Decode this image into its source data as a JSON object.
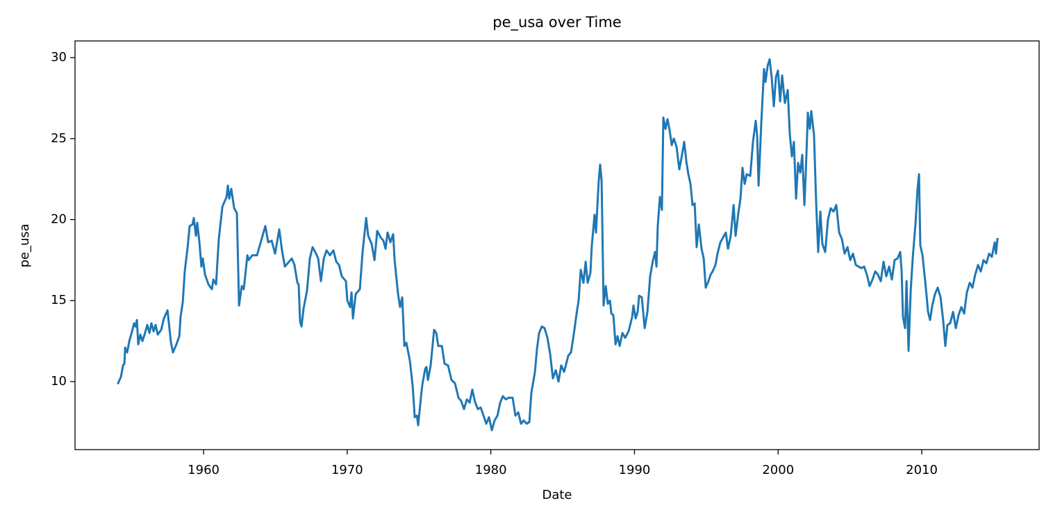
{
  "chart_data": {
    "type": "line",
    "title": "pe_usa over Time",
    "x_label": "Date",
    "y_label": "pe_usa",
    "color": "#1f77b4",
    "xlim": [
      1951.05,
      2018.17
    ],
    "xticks": [
      1960,
      1970,
      1980,
      1990,
      2000,
      2010
    ],
    "ylim": [
      5.8,
      31.03
    ],
    "yticks": [
      10,
      15,
      20,
      25,
      30
    ],
    "grid": false,
    "x": [
      1954.05,
      1954.25,
      1954.39,
      1954.49,
      1954.54,
      1954.68,
      1954.83,
      1955.02,
      1955.16,
      1955.26,
      1955.36,
      1955.45,
      1955.6,
      1955.74,
      1955.89,
      1956.08,
      1956.23,
      1956.37,
      1956.52,
      1956.66,
      1956.81,
      1957.05,
      1957.24,
      1957.49,
      1957.73,
      1957.87,
      1958.11,
      1958.31,
      1958.4,
      1958.55,
      1958.69,
      1958.89,
      1959.03,
      1959.23,
      1959.32,
      1959.47,
      1959.56,
      1959.71,
      1959.85,
      1959.95,
      1960.1,
      1960.34,
      1960.58,
      1960.68,
      1960.87,
      1961.06,
      1961.31,
      1961.6,
      1961.69,
      1961.79,
      1961.93,
      1962.13,
      1962.32,
      1962.47,
      1962.66,
      1962.8,
      1963.05,
      1963.14,
      1963.39,
      1963.72,
      1964.01,
      1964.3,
      1964.5,
      1964.74,
      1964.98,
      1965.27,
      1965.46,
      1965.66,
      1965.95,
      1966.14,
      1966.33,
      1966.53,
      1966.62,
      1966.72,
      1966.82,
      1966.96,
      1967.2,
      1967.4,
      1967.59,
      1967.83,
      1967.98,
      1968.17,
      1968.37,
      1968.56,
      1968.8,
      1969.04,
      1969.24,
      1969.43,
      1969.62,
      1969.91,
      1970.01,
      1970.2,
      1970.3,
      1970.4,
      1970.59,
      1970.88,
      1971.07,
      1971.32,
      1971.46,
      1971.7,
      1971.9,
      1972.09,
      1972.33,
      1972.52,
      1972.67,
      1972.81,
      1973.01,
      1973.2,
      1973.3,
      1973.54,
      1973.68,
      1973.83,
      1973.98,
      1974.12,
      1974.36,
      1974.56,
      1974.7,
      1974.85,
      1974.94,
      1975.14,
      1975.23,
      1975.43,
      1975.52,
      1975.62,
      1975.81,
      1976.05,
      1976.2,
      1976.34,
      1976.59,
      1976.78,
      1977.02,
      1977.26,
      1977.5,
      1977.75,
      1977.94,
      1978.13,
      1978.33,
      1978.52,
      1978.71,
      1978.91,
      1979.1,
      1979.29,
      1979.49,
      1979.68,
      1979.87,
      1980.07,
      1980.26,
      1980.46,
      1980.65,
      1980.84,
      1981.04,
      1981.23,
      1981.52,
      1981.71,
      1981.91,
      1982.1,
      1982.29,
      1982.49,
      1982.68,
      1982.82,
      1983.07,
      1983.21,
      1983.36,
      1983.55,
      1983.74,
      1983.94,
      1984.13,
      1984.32,
      1984.52,
      1984.71,
      1984.9,
      1985.1,
      1985.39,
      1985.58,
      1985.77,
      1985.97,
      1986.11,
      1986.26,
      1986.45,
      1986.6,
      1986.74,
      1986.93,
      1987.03,
      1987.22,
      1987.32,
      1987.51,
      1987.61,
      1987.71,
      1987.85,
      1988.0,
      1988.14,
      1988.29,
      1988.39,
      1988.53,
      1988.68,
      1988.82,
      1988.97,
      1989.16,
      1989.35,
      1989.59,
      1989.84,
      1989.93,
      1990.08,
      1990.22,
      1990.32,
      1990.51,
      1990.71,
      1990.9,
      1991.09,
      1991.29,
      1991.43,
      1991.53,
      1991.62,
      1991.77,
      1991.91,
      1992.01,
      1992.16,
      1992.3,
      1992.45,
      1992.59,
      1992.74,
      1992.93,
      1993.12,
      1993.27,
      1993.46,
      1993.61,
      1993.75,
      1993.9,
      1994.04,
      1994.19,
      1994.33,
      1994.48,
      1994.67,
      1994.82,
      1994.96,
      1995.15,
      1995.3,
      1995.44,
      1995.64,
      1995.78,
      1995.98,
      1996.17,
      1996.36,
      1996.51,
      1996.7,
      1996.9,
      1997.04,
      1997.23,
      1997.38,
      1997.52,
      1997.67,
      1997.81,
      1998.06,
      1998.25,
      1998.44,
      1998.54,
      1998.64,
      1998.83,
      1999.02,
      1999.12,
      1999.27,
      1999.41,
      1999.56,
      1999.7,
      1999.85,
      1999.99,
      2000.14,
      2000.28,
      2000.47,
      2000.67,
      2000.81,
      2000.96,
      2001.1,
      2001.25,
      2001.39,
      2001.54,
      2001.68,
      2001.83,
      2001.93,
      2002.07,
      2002.21,
      2002.31,
      2002.5,
      2002.65,
      2002.79,
      2002.94,
      2003.08,
      2003.28,
      2003.47,
      2003.66,
      2003.86,
      2004.05,
      2004.25,
      2004.44,
      2004.63,
      2004.83,
      2005.02,
      2005.21,
      2005.41,
      2005.6,
      2005.79,
      2005.99,
      2006.18,
      2006.37,
      2006.57,
      2006.76,
      2006.95,
      2007.15,
      2007.34,
      2007.53,
      2007.73,
      2007.92,
      2008.11,
      2008.31,
      2008.5,
      2008.6,
      2008.69,
      2008.84,
      2008.94,
      2009.08,
      2009.23,
      2009.37,
      2009.56,
      2009.71,
      2009.81,
      2009.9,
      2010.05,
      2010.24,
      2010.44,
      2010.58,
      2010.73,
      2010.92,
      2011.11,
      2011.31,
      2011.5,
      2011.64,
      2011.79,
      2011.98,
      2012.18,
      2012.37,
      2012.56,
      2012.76,
      2012.95,
      2013.14,
      2013.34,
      2013.53,
      2013.72,
      2013.92,
      2014.11,
      2014.3,
      2014.5,
      2014.69,
      2014.88,
      2015.08,
      2015.17,
      2015.27
    ],
    "values": [
      9.9,
      10.3,
      11.0,
      11.1,
      12.1,
      11.8,
      12.5,
      13.1,
      13.6,
      13.4,
      13.8,
      12.3,
      12.9,
      12.5,
      12.9,
      13.5,
      13.0,
      13.6,
      13.1,
      13.5,
      12.9,
      13.2,
      13.9,
      14.4,
      12.4,
      11.8,
      12.3,
      12.8,
      14.0,
      14.9,
      16.8,
      18.3,
      19.6,
      19.7,
      20.1,
      19.0,
      19.8,
      18.6,
      17.1,
      17.6,
      16.6,
      16.0,
      15.7,
      16.3,
      16.0,
      18.8,
      20.8,
      21.4,
      22.1,
      21.3,
      21.9,
      20.7,
      20.4,
      14.7,
      15.9,
      15.7,
      17.8,
      17.5,
      17.8,
      17.8,
      18.7,
      19.6,
      18.6,
      18.7,
      17.9,
      19.4,
      18.1,
      17.1,
      17.4,
      17.6,
      17.2,
      16.1,
      16.0,
      13.7,
      13.4,
      14.5,
      15.6,
      17.6,
      18.3,
      17.9,
      17.6,
      16.2,
      17.6,
      18.1,
      17.8,
      18.1,
      17.4,
      17.2,
      16.5,
      16.2,
      15.0,
      14.6,
      15.5,
      13.9,
      15.4,
      15.7,
      18.0,
      20.1,
      19.0,
      18.5,
      17.5,
      19.3,
      18.9,
      18.7,
      18.2,
      19.2,
      18.6,
      19.1,
      17.5,
      15.4,
      14.6,
      15.2,
      12.2,
      12.4,
      11.3,
      9.7,
      7.8,
      7.9,
      7.3,
      9.1,
      9.8,
      10.8,
      10.9,
      10.1,
      11.0,
      13.2,
      13.0,
      12.2,
      12.2,
      11.1,
      11.0,
      10.1,
      9.9,
      9.0,
      8.8,
      8.3,
      8.9,
      8.7,
      9.5,
      8.7,
      8.3,
      8.4,
      7.9,
      7.4,
      7.8,
      7.0,
      7.6,
      7.9,
      8.7,
      9.1,
      8.9,
      9.0,
      9.0,
      7.9,
      8.1,
      7.4,
      7.6,
      7.4,
      7.5,
      9.3,
      10.6,
      12.0,
      13.0,
      13.4,
      13.3,
      12.7,
      11.7,
      10.2,
      10.7,
      10.0,
      11.0,
      10.6,
      11.6,
      11.8,
      12.9,
      14.2,
      15.0,
      16.9,
      16.1,
      17.4,
      16.1,
      16.7,
      18.4,
      20.3,
      19.2,
      22.4,
      23.4,
      22.4,
      14.7,
      15.9,
      14.8,
      15.0,
      14.2,
      14.1,
      12.3,
      12.8,
      12.2,
      13.0,
      12.7,
      13.1,
      14.0,
      14.7,
      13.9,
      14.3,
      15.3,
      15.2,
      13.3,
      14.3,
      16.5,
      17.5,
      18.0,
      17.1,
      19.6,
      21.4,
      20.6,
      26.3,
      25.6,
      26.2,
      25.5,
      24.6,
      25.0,
      24.5,
      23.1,
      23.8,
      24.8,
      23.6,
      22.8,
      22.2,
      20.9,
      21.0,
      18.3,
      19.7,
      18.2,
      17.6,
      15.8,
      16.2,
      16.6,
      16.8,
      17.2,
      17.9,
      18.6,
      18.9,
      19.2,
      18.2,
      19.0,
      20.9,
      19.0,
      20.4,
      21.3,
      23.2,
      22.2,
      22.8,
      22.7,
      24.8,
      26.1,
      25.2,
      22.1,
      26.0,
      29.3,
      28.5,
      29.5,
      29.9,
      28.7,
      27.0,
      28.8,
      29.2,
      27.3,
      28.9,
      27.2,
      28.0,
      25.3,
      23.9,
      24.8,
      21.3,
      23.5,
      22.9,
      24.0,
      20.9,
      23.0,
      26.6,
      25.6,
      26.7,
      25.2,
      21.0,
      18.0,
      20.5,
      18.5,
      18.0,
      20.0,
      20.7,
      20.5,
      20.9,
      19.2,
      18.8,
      17.9,
      18.3,
      17.5,
      17.9,
      17.2,
      17.1,
      17.0,
      17.1,
      16.6,
      15.9,
      16.3,
      16.8,
      16.6,
      16.2,
      17.4,
      16.5,
      17.1,
      16.3,
      17.5,
      17.6,
      18.0,
      16.8,
      14.0,
      13.3,
      16.2,
      11.9,
      15.6,
      17.6,
      19.7,
      21.9,
      22.8,
      18.4,
      17.8,
      16.2,
      14.3,
      13.8,
      14.7,
      15.4,
      15.8,
      15.2,
      13.7,
      12.2,
      13.5,
      13.6,
      14.3,
      13.3,
      14.1,
      14.6,
      14.2,
      15.5,
      16.1,
      15.8,
      16.6,
      17.2,
      16.8,
      17.5,
      17.3,
      17.9,
      17.7,
      18.6,
      17.9,
      18.8
    ]
  }
}
